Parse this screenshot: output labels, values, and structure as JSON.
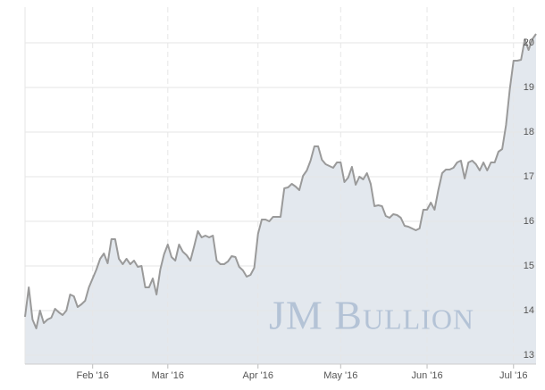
{
  "chart_data": {
    "type": "line",
    "watermark": "JM Bullion",
    "categories": [
      null,
      null,
      null,
      null,
      null,
      null,
      null,
      null,
      null,
      null,
      null,
      null,
      null,
      null,
      null,
      null,
      null,
      null,
      "Feb '16",
      null,
      null,
      null,
      null,
      null,
      null,
      null,
      null,
      null,
      null,
      null,
      null,
      null,
      null,
      null,
      null,
      null,
      null,
      null,
      "Mar '16",
      null,
      null,
      null,
      null,
      null,
      null,
      null,
      null,
      null,
      null,
      null,
      null,
      null,
      null,
      null,
      null,
      null,
      null,
      null,
      null,
      null,
      null,
      null,
      "Apr '16",
      null,
      null,
      null,
      null,
      null,
      null,
      null,
      null,
      null,
      null,
      null,
      null,
      null,
      null,
      null,
      null,
      null,
      null,
      null,
      null,
      null,
      "May '16",
      null,
      null,
      null,
      null,
      null,
      null,
      null,
      null,
      null,
      null,
      null,
      null,
      null,
      null,
      null,
      null,
      null,
      null,
      null,
      null,
      null,
      null,
      "Jun '16",
      null,
      null,
      null,
      null,
      null,
      null,
      null,
      null,
      null,
      null,
      null,
      null,
      null,
      null,
      null,
      null,
      null,
      null,
      null,
      null,
      null,
      null,
      "Jul '16",
      null,
      null,
      null,
      null,
      null,
      null
    ],
    "values": [
      13.86,
      14.52,
      13.8,
      13.6,
      14.0,
      13.72,
      13.8,
      13.84,
      14.04,
      13.96,
      13.9,
      14.0,
      14.36,
      14.32,
      14.08,
      14.14,
      14.22,
      14.52,
      14.72,
      14.92,
      15.16,
      15.28,
      15.06,
      15.6,
      15.6,
      15.16,
      15.04,
      15.16,
      15.04,
      15.12,
      14.98,
      15.0,
      14.52,
      14.52,
      14.72,
      14.36,
      14.92,
      15.26,
      15.48,
      15.2,
      15.12,
      15.48,
      15.32,
      15.24,
      15.12,
      15.44,
      15.78,
      15.64,
      15.68,
      15.64,
      15.68,
      15.12,
      15.04,
      15.04,
      15.1,
      15.22,
      15.2,
      14.98,
      14.9,
      14.76,
      14.8,
      14.96,
      15.72,
      16.04,
      16.04,
      16.0,
      16.1,
      16.1,
      16.1,
      16.74,
      16.76,
      16.84,
      16.78,
      16.7,
      17.02,
      17.14,
      17.36,
      17.68,
      17.68,
      17.38,
      17.28,
      17.24,
      17.2,
      17.32,
      17.32,
      16.88,
      16.98,
      17.22,
      16.82,
      17.0,
      16.94,
      17.08,
      16.84,
      16.34,
      16.36,
      16.34,
      16.12,
      16.08,
      16.16,
      16.14,
      16.08,
      15.9,
      15.88,
      15.84,
      15.8,
      15.84,
      16.26,
      16.26,
      16.42,
      16.26,
      16.7,
      17.08,
      17.16,
      17.16,
      17.2,
      17.32,
      17.36,
      16.96,
      17.32,
      17.36,
      17.28,
      17.14,
      17.32,
      17.14,
      17.32,
      17.32,
      17.56,
      17.62,
      18.16,
      18.96,
      19.6,
      19.6,
      19.62,
      20.08,
      19.84,
      20.08,
      20.2
    ],
    "color": "#9a9a9a",
    "fill": "#e3e8ee",
    "ylim": [
      12.8,
      20.8
    ],
    "yticks": [
      13,
      14,
      15,
      16,
      17,
      18,
      19,
      20
    ],
    "grid": true
  }
}
